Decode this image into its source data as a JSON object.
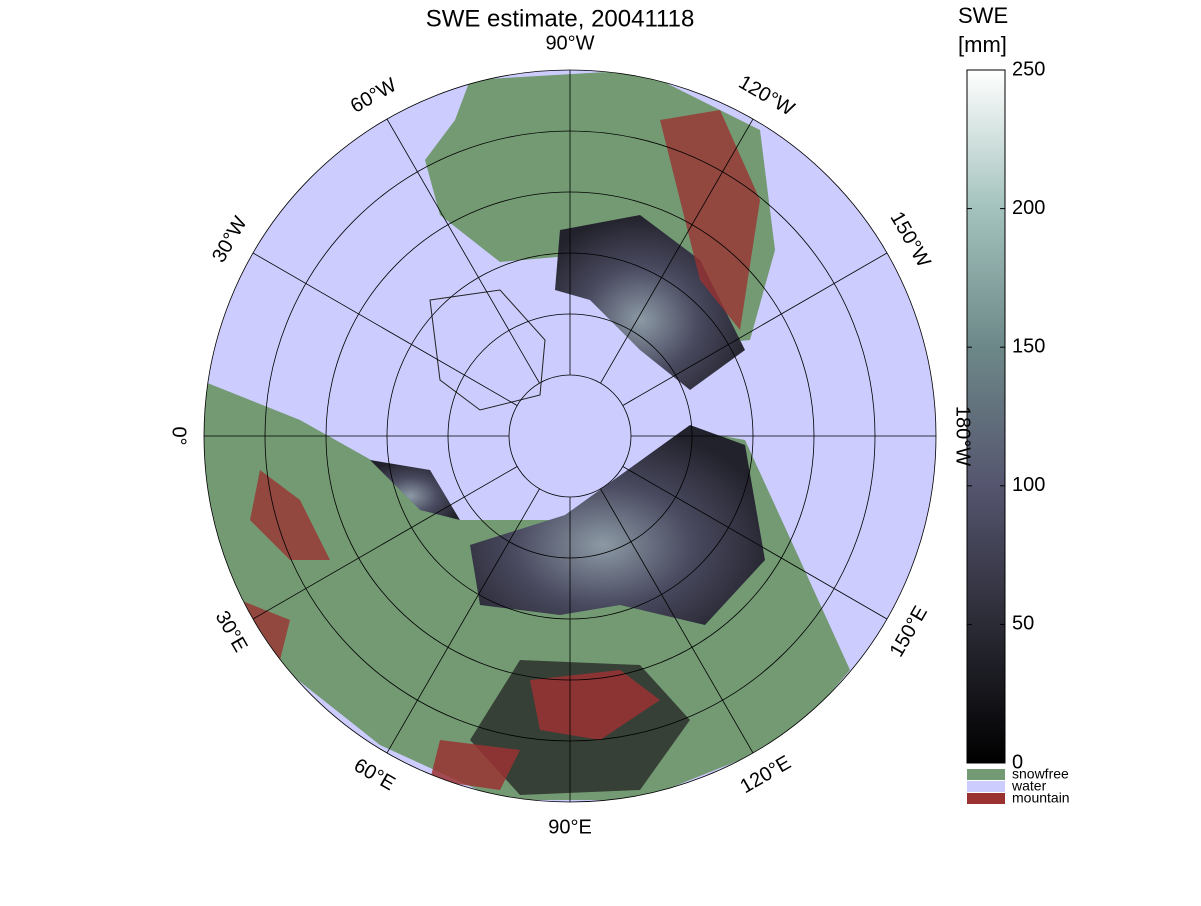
{
  "title": "SWE estimate, 20041118",
  "graticule_labels": [
    {
      "text": "90°W",
      "lon": -90
    },
    {
      "text": "120°W",
      "lon": -120
    },
    {
      "text": "150°W",
      "lon": -150
    },
    {
      "text": "180°W",
      "lon": 180
    },
    {
      "text": "150°E",
      "lon": 150
    },
    {
      "text": "120°E",
      "lon": 120
    },
    {
      "text": "90°E",
      "lon": 90
    },
    {
      "text": "60°E",
      "lon": 60
    },
    {
      "text": "30°E",
      "lon": 30
    },
    {
      "text": "0°",
      "lon": 0
    },
    {
      "text": "30°W",
      "lon": -30
    },
    {
      "text": "60°W",
      "lon": -60
    }
  ],
  "colorbar": {
    "title": [
      "SWE",
      "[mm]"
    ],
    "lim": [
      0,
      250
    ],
    "ticks": [
      0,
      50,
      100,
      150,
      200,
      250
    ]
  },
  "legend": [
    {
      "name": "snowfree",
      "color": "#739a73"
    },
    {
      "name": "water",
      "color": "#ccccff"
    },
    {
      "name": "mountain",
      "color": "#9a3232"
    }
  ]
}
